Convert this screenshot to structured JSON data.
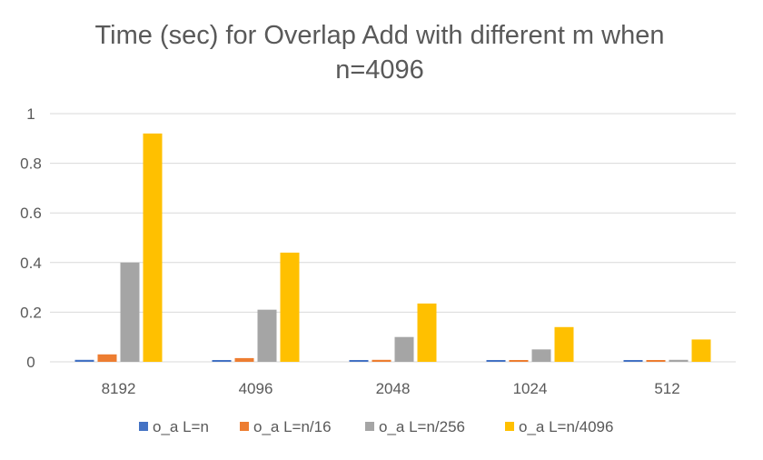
{
  "chart_data": {
    "type": "bar",
    "title_lines": [
      "Time (sec) for Overlap Add with different m when",
      "n=4096"
    ],
    "categories": [
      "8192",
      "4096",
      "2048",
      "1024",
      "512"
    ],
    "series": [
      {
        "name": "o_a L=n",
        "color": "#4472C4",
        "values": [
          0.008,
          0.006,
          0.005,
          0.005,
          0.005
        ]
      },
      {
        "name": "o_a L=n/16",
        "color": "#ED7D31",
        "values": [
          0.03,
          0.015,
          0.008,
          0.006,
          0.005
        ]
      },
      {
        "name": "o_a L=n/256",
        "color": "#A5A5A5",
        "values": [
          0.4,
          0.21,
          0.1,
          0.05,
          0.008
        ]
      },
      {
        "name": "o_a L=n/4096",
        "color": "#FFC000",
        "values": [
          0.92,
          0.44,
          0.235,
          0.14,
          0.09
        ]
      }
    ],
    "ylim": [
      0,
      1
    ],
    "yticks": [
      0,
      0.2,
      0.4,
      0.6,
      0.8,
      1
    ],
    "ytick_labels": [
      "0",
      "0.2",
      "0.4",
      "0.6",
      "0.8",
      "1"
    ],
    "grid": true,
    "legend_position": "bottom"
  }
}
